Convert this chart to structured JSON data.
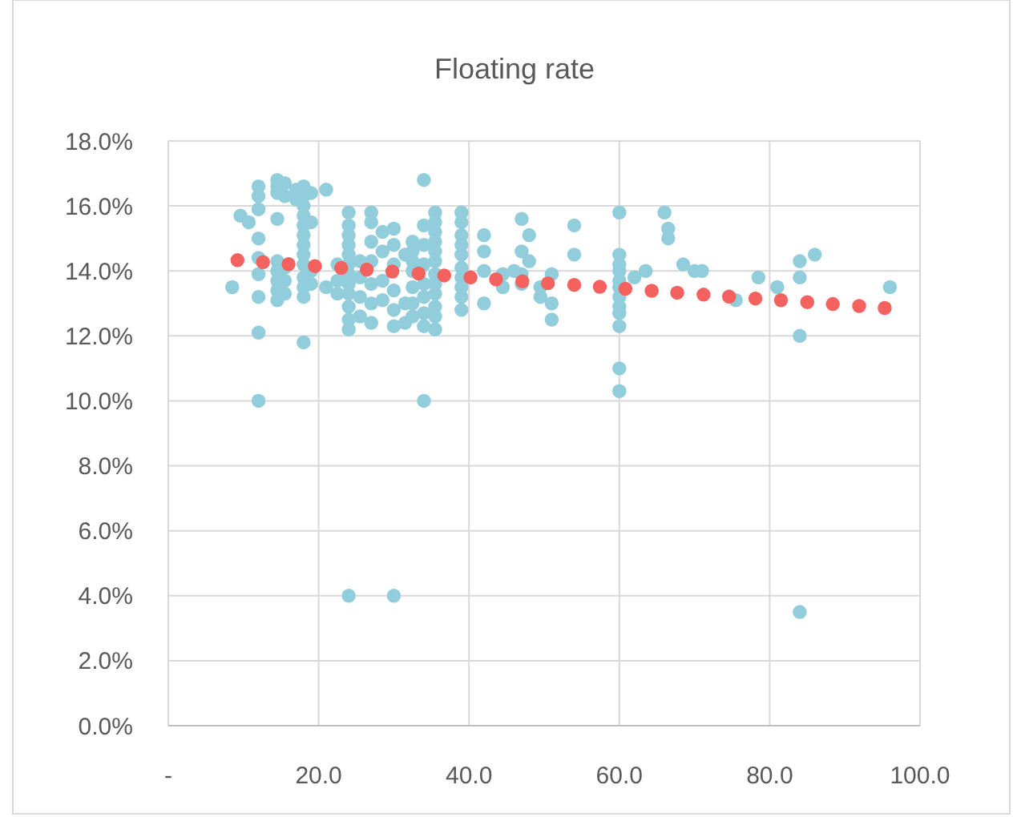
{
  "chart_data": {
    "type": "scatter",
    "title": "Floating rate",
    "marker": "circle",
    "grid": true,
    "xlim": [
      0,
      100
    ],
    "xticks": [
      {
        "value": 0,
        "label": "-"
      },
      {
        "value": 20,
        "label": "20.0"
      },
      {
        "value": 40,
        "label": "40.0"
      },
      {
        "value": 60,
        "label": "60.0"
      },
      {
        "value": 80,
        "label": "80.0"
      },
      {
        "value": 100,
        "label": "100.0"
      }
    ],
    "ylim": [
      0,
      18
    ],
    "yticks": [
      {
        "value": 0,
        "label": "0.0%"
      },
      {
        "value": 2,
        "label": "2.0%"
      },
      {
        "value": 4,
        "label": "4.0%"
      },
      {
        "value": 6,
        "label": "6.0%"
      },
      {
        "value": 8,
        "label": "8.0%"
      },
      {
        "value": 10,
        "label": "10.0%"
      },
      {
        "value": 12,
        "label": "12.0%"
      },
      {
        "value": 14,
        "label": "14.0%"
      },
      {
        "value": 16,
        "label": "16.0%"
      },
      {
        "value": 18,
        "label": "18.0%"
      }
    ],
    "series": [
      {
        "color": "#92cddc",
        "x": [
          8.5,
          9.6,
          10.7,
          12,
          12,
          12,
          12,
          12,
          12,
          12,
          12,
          12,
          14.5,
          14.5,
          14.5,
          14.5,
          14.5,
          14.5,
          14.5,
          14.5,
          14.5,
          15.5,
          15.5,
          15.5,
          15.5,
          15.5,
          17,
          17,
          18,
          18,
          18,
          18,
          18,
          18,
          18,
          18,
          18,
          18,
          18,
          18,
          18,
          19,
          19,
          19,
          19,
          21,
          21,
          22.5,
          22.5,
          22.5,
          24,
          24,
          24,
          24,
          24,
          24,
          24,
          24,
          24,
          24,
          24,
          24,
          24,
          25.5,
          25.5,
          25.5,
          25.5,
          27,
          27,
          27,
          27,
          27,
          27,
          27,
          28.5,
          28.5,
          28.5,
          28.5,
          30,
          30,
          30,
          30,
          30,
          30,
          30,
          31.5,
          31.5,
          31.5,
          32.5,
          32.5,
          32.5,
          32.5,
          32.5,
          32.5,
          32.5,
          34,
          34,
          34,
          34,
          34,
          34,
          34,
          34,
          34,
          35.5,
          35.5,
          35.5,
          35.5,
          35.5,
          35.5,
          35.5,
          35.5,
          35.5,
          35.5,
          35.5,
          35.5,
          39,
          39,
          39,
          39,
          39,
          39,
          39,
          39,
          39,
          39,
          42,
          42,
          42,
          42,
          44.5,
          44.5,
          46,
          47,
          47,
          47,
          47,
          48,
          48,
          49.5,
          49.5,
          51,
          51,
          51,
          54,
          54,
          60,
          60,
          60,
          60,
          60,
          60,
          60,
          60,
          60,
          60,
          60,
          60,
          62,
          63.5,
          66,
          66.5,
          66.5,
          68.5,
          70,
          71,
          75.5,
          78.5,
          81,
          84,
          84,
          84,
          84,
          86,
          96
        ],
        "values": [
          13.5,
          15.7,
          15.5,
          16.6,
          16.3,
          15.9,
          15.0,
          14.4,
          13.9,
          13.2,
          12.1,
          10.0,
          16.8,
          16.6,
          16.4,
          15.6,
          14.3,
          14.0,
          13.7,
          13.4,
          13.1,
          16.7,
          16.3,
          14.1,
          13.7,
          13.3,
          16.5,
          16.2,
          16.6,
          16.3,
          16.0,
          15.7,
          15.4,
          15.1,
          14.8,
          14.5,
          14.2,
          13.8,
          13.5,
          13.2,
          11.8,
          16.4,
          15.5,
          14.0,
          13.6,
          16.5,
          13.5,
          14.2,
          13.7,
          13.3,
          15.8,
          15.4,
          15.1,
          14.8,
          14.5,
          14.2,
          13.9,
          13.6,
          13.3,
          12.9,
          12.5,
          12.2,
          4.0,
          14.3,
          13.8,
          13.2,
          12.6,
          15.8,
          15.5,
          14.9,
          14.3,
          13.6,
          13.0,
          12.4,
          15.2,
          14.6,
          13.7,
          13.1,
          15.3,
          14.8,
          14.2,
          13.4,
          12.8,
          12.3,
          4.0,
          14.5,
          13.0,
          12.4,
          14.9,
          14.6,
          14.3,
          14.0,
          13.5,
          13.0,
          12.6,
          16.8,
          15.4,
          14.8,
          14.2,
          13.6,
          13.2,
          12.7,
          12.3,
          10.0,
          15.8,
          15.5,
          15.2,
          14.9,
          14.6,
          14.3,
          13.9,
          13.6,
          13.3,
          12.9,
          12.6,
          12.2,
          15.8,
          15.5,
          15.1,
          14.8,
          14.5,
          14.1,
          13.8,
          13.5,
          13.2,
          12.8,
          15.1,
          14.6,
          14.0,
          13.0,
          13.9,
          13.5,
          14.0,
          15.6,
          14.6,
          13.9,
          13.6,
          15.1,
          14.3,
          13.5,
          13.2,
          13.9,
          13.0,
          12.5,
          15.4,
          14.5,
          15.8,
          14.5,
          14.2,
          14.0,
          13.7,
          13.5,
          13.2,
          12.9,
          12.7,
          12.3,
          11.0,
          10.3,
          13.8,
          14.0,
          15.8,
          15.3,
          15.0,
          14.2,
          14.0,
          14.0,
          13.1,
          13.8,
          13.5,
          14.3,
          13.8,
          12.0,
          3.5,
          14.5,
          13.5
        ]
      },
      {
        "color": "#f4625f",
        "x": [
          9.2,
          12.6,
          16.0,
          19.5,
          23.0,
          26.4,
          29.8,
          33.3,
          36.7,
          40.2,
          43.6,
          47.1,
          50.5,
          54.0,
          57.4,
          60.8,
          64.3,
          67.7,
          71.2,
          74.6,
          78.1,
          81.5,
          85.0,
          88.4,
          91.9,
          95.3
        ],
        "values": [
          14.33,
          14.27,
          14.21,
          14.15,
          14.09,
          14.04,
          13.98,
          13.92,
          13.86,
          13.8,
          13.74,
          13.68,
          13.62,
          13.57,
          13.51,
          13.45,
          13.39,
          13.33,
          13.27,
          13.21,
          13.15,
          13.1,
          13.04,
          12.98,
          12.92,
          12.86
        ]
      }
    ]
  }
}
